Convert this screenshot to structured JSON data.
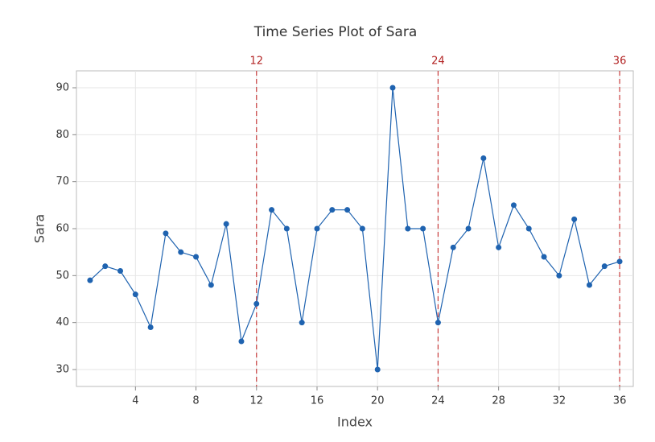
{
  "chart_data": {
    "type": "line",
    "title": "Time Series Plot of Sara",
    "x_label": "Index",
    "y_label": "Sara",
    "x": [
      1,
      2,
      3,
      4,
      5,
      6,
      7,
      8,
      9,
      10,
      11,
      12,
      13,
      14,
      15,
      16,
      17,
      18,
      19,
      20,
      21,
      22,
      23,
      24,
      25,
      26,
      27,
      28,
      29,
      30,
      31,
      32,
      33,
      34,
      35,
      36
    ],
    "series": [
      {
        "name": "Sara",
        "color": "#1f63b0",
        "values": [
          49,
          52,
          51,
          46,
          39,
          59,
          55,
          54,
          48,
          61,
          36,
          44,
          64,
          60,
          40,
          60,
          64,
          64,
          60,
          30,
          90,
          60,
          60,
          40,
          56,
          60,
          75,
          56,
          65,
          60,
          54,
          50,
          62,
          48,
          52,
          53
        ]
      }
    ],
    "xlim": [
      0.1,
      36.9
    ],
    "xticks": [
      4,
      8,
      12,
      16,
      20,
      24,
      28,
      32,
      36
    ],
    "ylim": [
      26.4,
      93.6
    ],
    "yticks": [
      30,
      40,
      50,
      60,
      70,
      80,
      90
    ],
    "grid": true,
    "reference_lines": [
      12,
      24,
      36
    ],
    "reference_color": "#c83c3c"
  }
}
